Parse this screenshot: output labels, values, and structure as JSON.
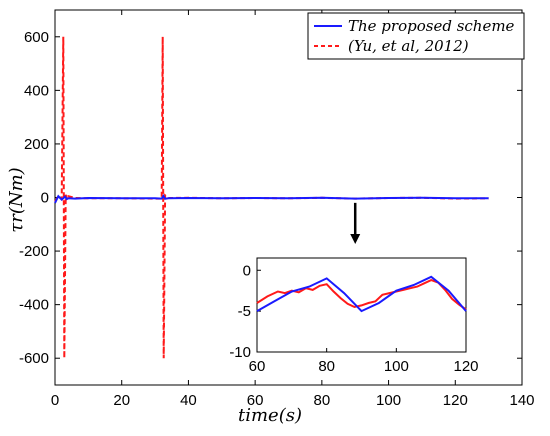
{
  "chart_data": {
    "type": "line",
    "xlabel": "time(s)",
    "ylabel": "τr(Nm)",
    "xlim": [
      0,
      140
    ],
    "ylim": [
      -700,
      700
    ],
    "xticks": [
      "0",
      "20",
      "40",
      "60",
      "80",
      "100",
      "120",
      "140"
    ],
    "yticks": [
      "600",
      "400",
      "200",
      "0",
      "-200",
      "-400",
      "-600"
    ],
    "legend": {
      "placement": "top-right"
    },
    "colors": {
      "proposed": "#1a1aff",
      "yu": "#ff1a1a"
    },
    "series": [
      {
        "name": "The proposed scheme",
        "style": "solid",
        "x": [
          0,
          1,
          2,
          2.5,
          3,
          3.5,
          4,
          6,
          10,
          20,
          30,
          32,
          32.5,
          33,
          34,
          40,
          50,
          60,
          70,
          80,
          90,
          100,
          110,
          120,
          130
        ],
        "y": [
          -20,
          5,
          -8,
          -3,
          3,
          -6,
          -3,
          -4,
          -2,
          -3,
          -3,
          -4,
          6,
          -5,
          -3,
          -2,
          -3,
          -2,
          -3,
          -1,
          -4,
          -2,
          -1,
          -3,
          -3
        ]
      },
      {
        "name": "(Yu, et al, 2012)",
        "style": "dashed",
        "x": [
          0,
          1,
          2,
          2.5,
          2.8,
          3.2,
          3.6,
          4,
          6,
          10,
          20,
          30,
          32,
          32.3,
          32.6,
          33,
          34,
          40,
          50,
          60,
          70,
          80,
          90,
          100,
          110,
          120,
          130
        ],
        "y": [
          -15,
          5,
          -5,
          600,
          -600,
          10,
          -5,
          5,
          -2,
          -3,
          -3,
          -4,
          -4,
          600,
          -600,
          8,
          -2,
          -1,
          -3,
          -2,
          -3,
          -1,
          -4,
          -2,
          -1,
          -4,
          -3
        ]
      }
    ],
    "inset": {
      "xlim": [
        60,
        120
      ],
      "ylim": [
        -10,
        1.5
      ],
      "xticks": [
        "60",
        "80",
        "100",
        "120"
      ],
      "yticks": [
        "0",
        "-5",
        "-10"
      ],
      "series": [
        {
          "name": "The proposed scheme",
          "x": [
            60,
            65,
            70,
            75,
            80,
            85,
            90,
            95,
            100,
            105,
            110,
            115,
            120
          ],
          "y": [
            -5,
            -3.8,
            -2.6,
            -2.0,
            -1.0,
            -2.8,
            -5.0,
            -4.0,
            -2.5,
            -1.8,
            -0.8,
            -2.5,
            -5.0
          ]
        },
        {
          "name": "(Yu, et al, 2012)",
          "x": [
            60,
            63,
            66,
            68,
            70,
            72,
            74,
            76,
            78,
            80,
            82,
            84,
            86,
            88,
            90,
            92,
            94,
            96,
            98,
            100,
            102,
            104,
            106,
            108,
            110,
            112,
            114,
            116,
            118,
            120
          ],
          "y": [
            -4.0,
            -3.2,
            -2.6,
            -2.8,
            -2.5,
            -2.7,
            -2.2,
            -2.4,
            -1.9,
            -1.7,
            -2.6,
            -3.4,
            -4.1,
            -4.5,
            -4.3,
            -4.0,
            -3.8,
            -3.0,
            -2.8,
            -2.6,
            -2.4,
            -2.2,
            -2.0,
            -1.6,
            -1.2,
            -1.5,
            -2.4,
            -3.5,
            -4.2,
            -4.8
          ]
        }
      ]
    }
  }
}
